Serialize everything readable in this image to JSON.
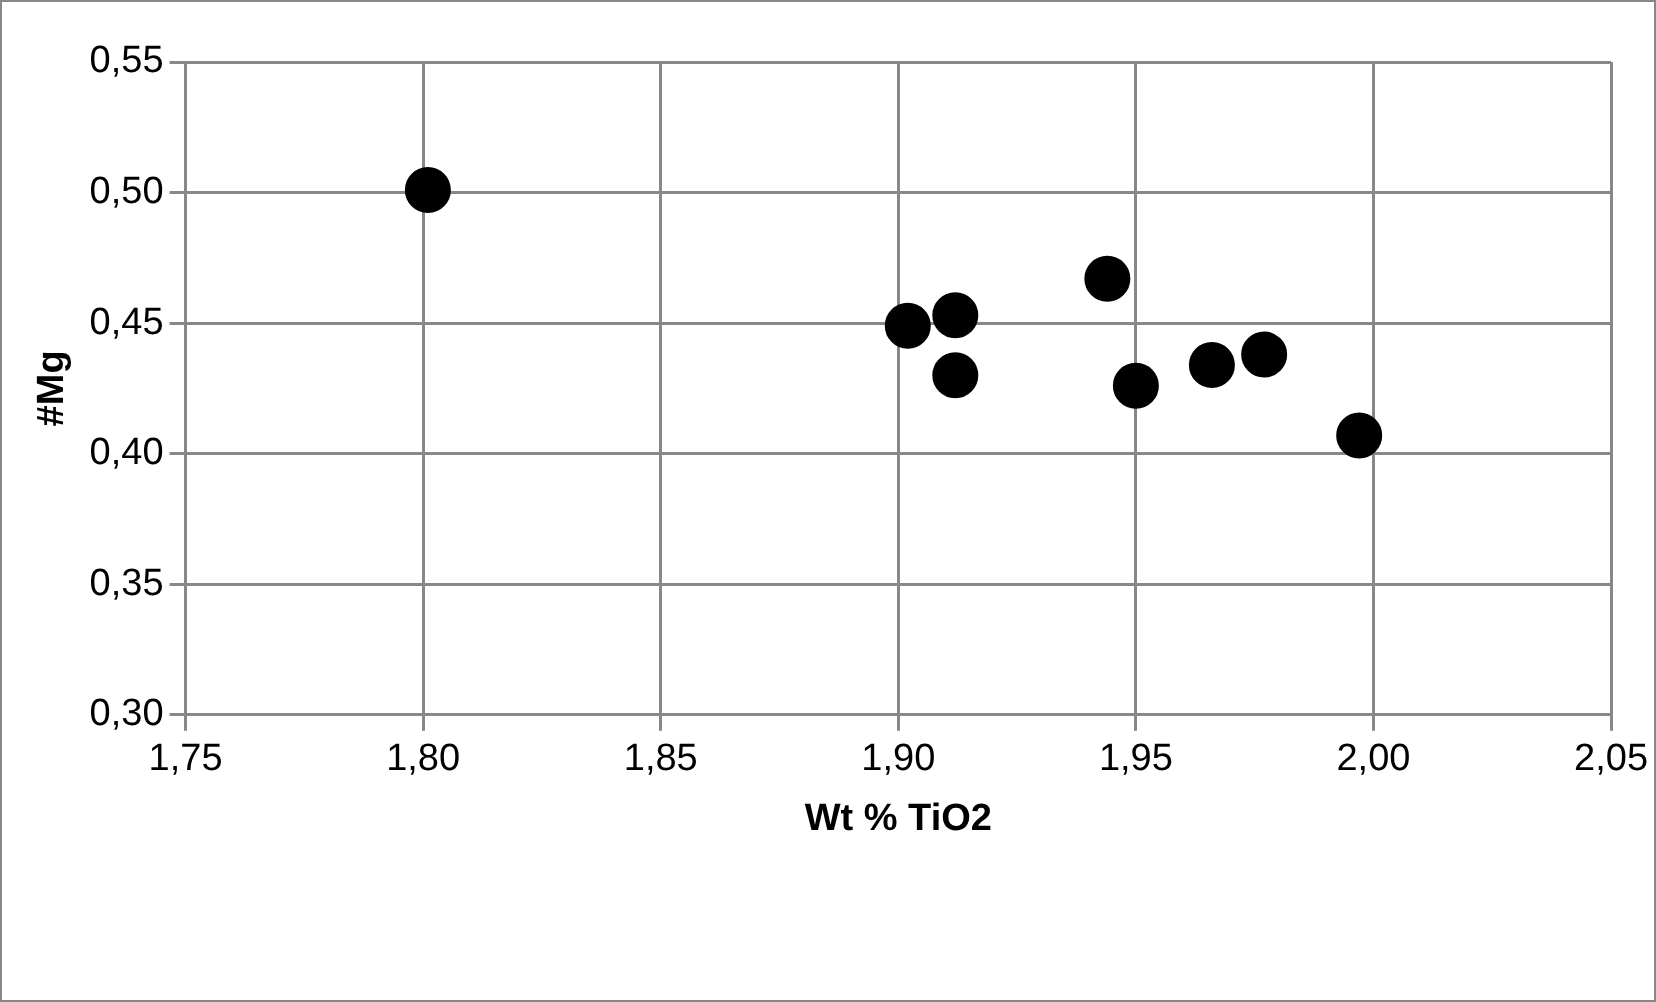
{
  "chart_data": {
    "type": "scatter",
    "xlabel": "Wt % TiO2",
    "ylabel": "#Mg",
    "x": [
      1.801,
      1.902,
      1.912,
      1.912,
      1.944,
      1.95,
      1.966,
      1.977,
      1.997
    ],
    "series": [
      {
        "color": "#000000",
        "values": [
          0.501,
          0.449,
          0.453,
          0.43,
          0.467,
          0.426,
          0.434,
          0.438,
          0.407
        ]
      }
    ],
    "xlim": [
      1.75,
      2.05
    ],
    "xticks": [
      {
        "value": 1.75,
        "label": "1,75"
      },
      {
        "value": 1.8,
        "label": "1,80"
      },
      {
        "value": 1.85,
        "label": "1,85"
      },
      {
        "value": 1.9,
        "label": "1,90"
      },
      {
        "value": 1.95,
        "label": "1,95"
      },
      {
        "value": 2.0,
        "label": "2,00"
      },
      {
        "value": 2.05,
        "label": "2,05"
      }
    ],
    "ylim": [
      0.3,
      0.55
    ],
    "yticks": [
      {
        "value": 0.3,
        "label": "0,30"
      },
      {
        "value": 0.35,
        "label": "0,35"
      },
      {
        "value": 0.4,
        "label": "0,40"
      },
      {
        "value": 0.45,
        "label": "0,45"
      },
      {
        "value": 0.5,
        "label": "0,50"
      },
      {
        "value": 0.55,
        "label": "0,55"
      }
    ],
    "grid": true,
    "legend": false,
    "marker": "circle"
  }
}
